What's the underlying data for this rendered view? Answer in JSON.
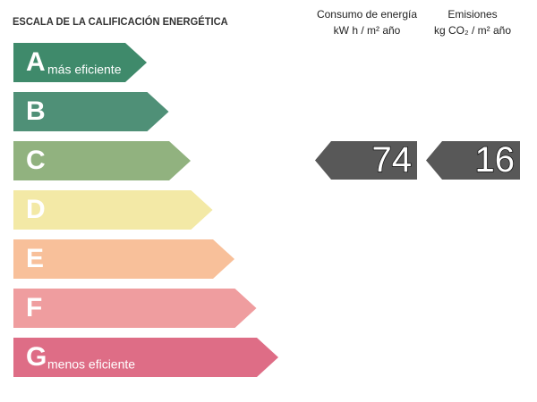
{
  "title": "ESCALA DE LA CALIFICACIÓN ENERGÉTICA",
  "scale": [
    {
      "letter": "A",
      "label": "más eficiente",
      "color": "#3f8a6b"
    },
    {
      "letter": "B",
      "color": "#4f9077"
    },
    {
      "letter": "C",
      "color": "#91b27f"
    },
    {
      "letter": "D",
      "color": "#f3e9a6"
    },
    {
      "letter": "E",
      "color": "#f8c09a"
    },
    {
      "letter": "F",
      "color": "#ef9d9f"
    },
    {
      "letter": "G",
      "label": "menos eficiente",
      "color": "#de6d86"
    }
  ],
  "columns": [
    {
      "heading": "Consumo de energía",
      "unit": "kW h / m² año",
      "value": 74
    },
    {
      "heading": "Emisiones",
      "unit": "kg CO₂ / m² año",
      "value": 16
    }
  ]
}
